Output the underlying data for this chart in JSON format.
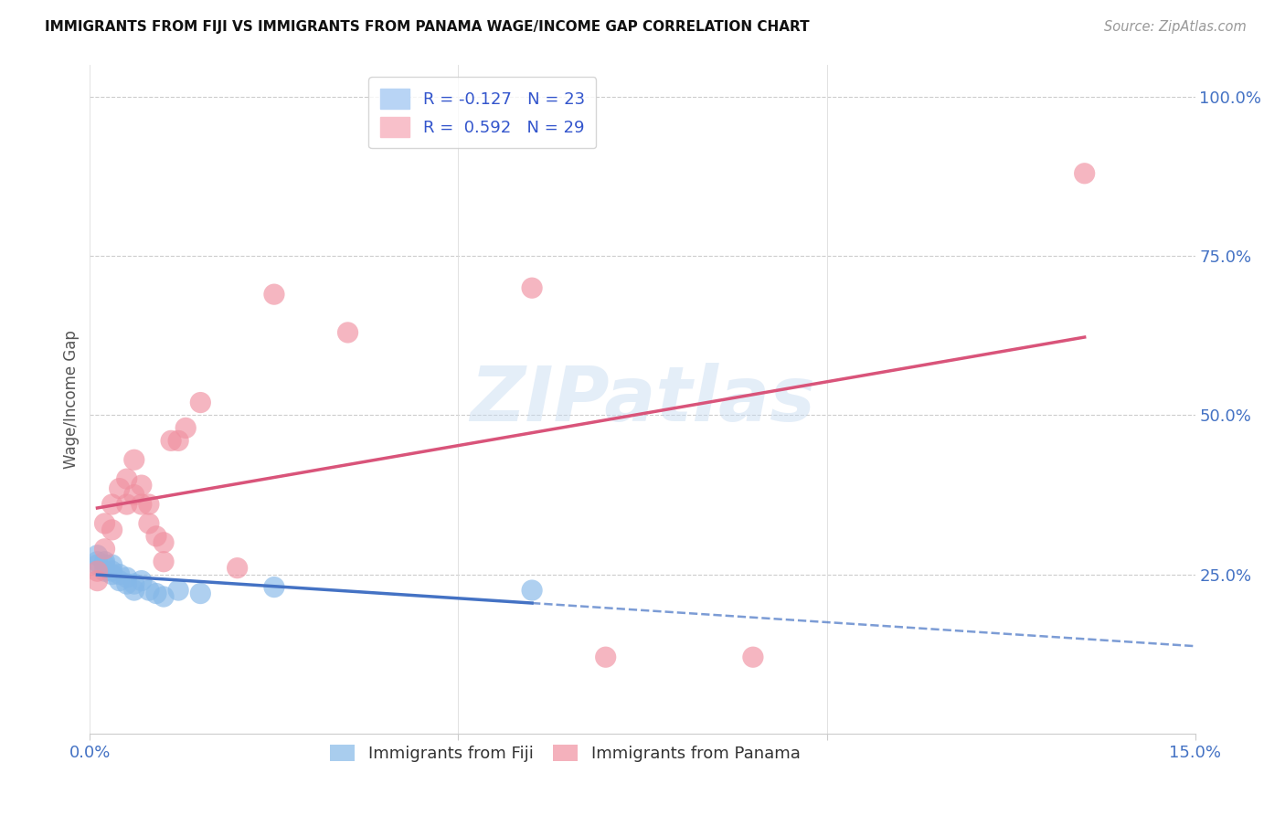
{
  "title": "IMMIGRANTS FROM FIJI VS IMMIGRANTS FROM PANAMA WAGE/INCOME GAP CORRELATION CHART",
  "source": "Source: ZipAtlas.com",
  "ylabel": "Wage/Income Gap",
  "xlim": [
    0.0,
    0.15
  ],
  "ylim": [
    0.0,
    1.05
  ],
  "xticks": [
    0.0,
    0.05,
    0.1,
    0.15
  ],
  "xtick_labels": [
    "0.0%",
    "",
    "",
    "15.0%"
  ],
  "ytick_labels_right": [
    "25.0%",
    "50.0%",
    "75.0%",
    "100.0%"
  ],
  "ytick_positions_right": [
    0.25,
    0.5,
    0.75,
    1.0
  ],
  "fiji_color": "#85b8e8",
  "panama_color": "#f090a0",
  "fiji_line_color": "#4472c4",
  "panama_line_color": "#d9547a",
  "grid_color": "#cccccc",
  "background_color": "#ffffff",
  "fiji_x": [
    0.001,
    0.001,
    0.001,
    0.002,
    0.002,
    0.002,
    0.003,
    0.003,
    0.003,
    0.004,
    0.004,
    0.005,
    0.005,
    0.006,
    0.006,
    0.007,
    0.008,
    0.009,
    0.01,
    0.012,
    0.015,
    0.025,
    0.06
  ],
  "fiji_y": [
    0.28,
    0.27,
    0.265,
    0.27,
    0.265,
    0.255,
    0.265,
    0.255,
    0.25,
    0.25,
    0.24,
    0.245,
    0.235,
    0.235,
    0.225,
    0.24,
    0.225,
    0.22,
    0.215,
    0.225,
    0.22,
    0.23,
    0.225
  ],
  "panama_x": [
    0.001,
    0.001,
    0.002,
    0.002,
    0.003,
    0.003,
    0.004,
    0.005,
    0.005,
    0.006,
    0.006,
    0.007,
    0.007,
    0.008,
    0.008,
    0.009,
    0.01,
    0.01,
    0.011,
    0.012,
    0.013,
    0.015,
    0.02,
    0.025,
    0.035,
    0.06,
    0.07,
    0.09,
    0.135
  ],
  "panama_y": [
    0.255,
    0.24,
    0.33,
    0.29,
    0.36,
    0.32,
    0.385,
    0.4,
    0.36,
    0.43,
    0.375,
    0.39,
    0.36,
    0.36,
    0.33,
    0.31,
    0.3,
    0.27,
    0.46,
    0.46,
    0.48,
    0.52,
    0.26,
    0.69,
    0.63,
    0.7,
    0.12,
    0.12,
    0.88
  ],
  "watermark": "ZIPatlas",
  "legend_fiji_label": "R = -0.127   N = 23",
  "legend_panama_label": "R =  0.592   N = 29"
}
